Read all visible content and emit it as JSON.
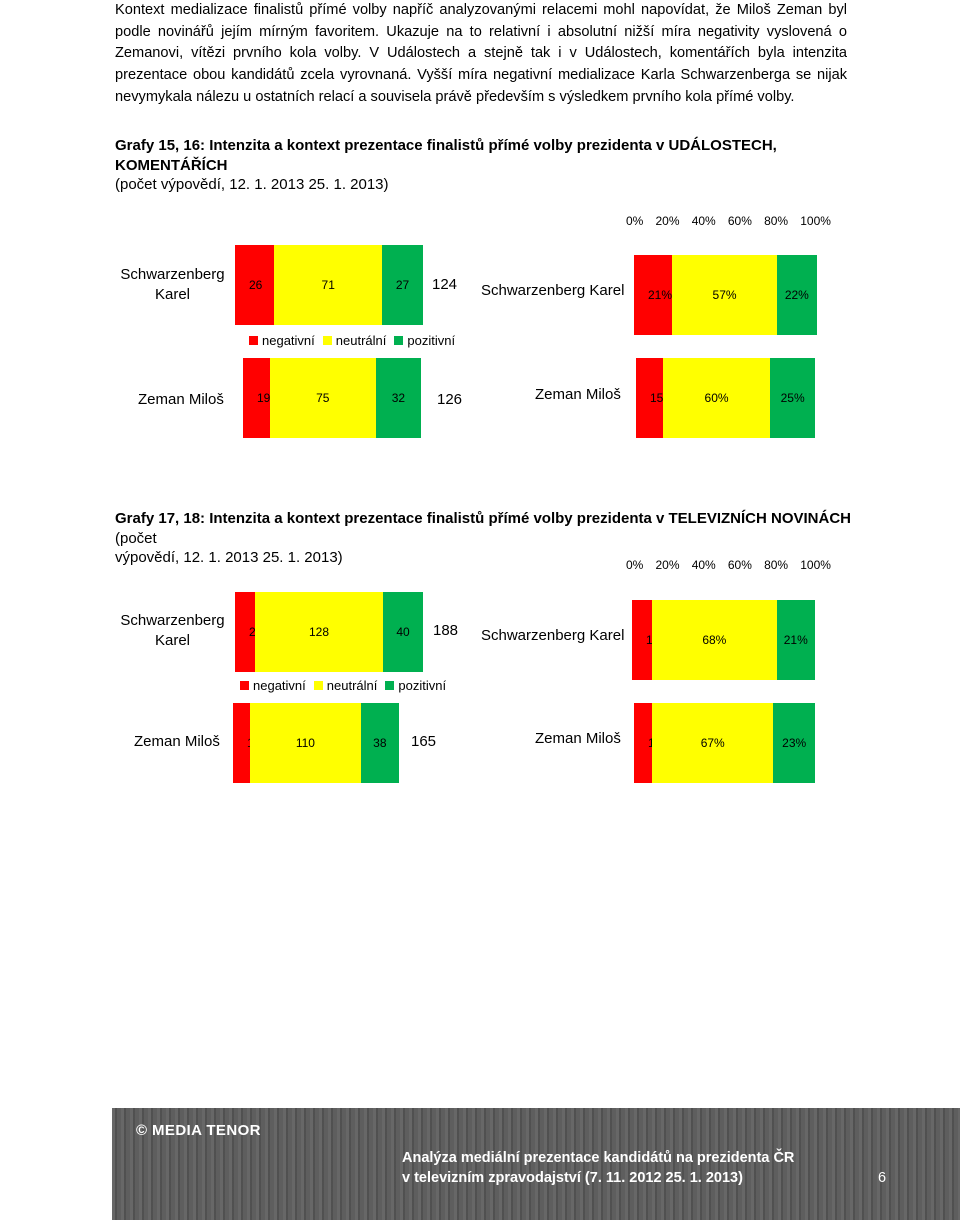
{
  "paragraph": [
    "Kontext medializace finalistů přímé volby napříč analyzovanými relacemi mohl napovídat, že Miloš Zeman byl",
    "podle novinářů jejím mírným favoritem. Ukazuje na to relativní i absolutní nižší míra negativity vyslovená o",
    "Zemanovi, vítězi prvního kola volby. V Událostech a stejně tak i v Událostech, komentářích byla intenzita",
    "prezentace obou kandidátů zcela vyrovnaná. Vyšší míra negativní medializace Karla Schwarzenberga se nijak",
    "nevymykala nálezu u ostatních relací a souvisela právě především s výsledkem prvního kola přímé volby."
  ],
  "section1": {
    "title_bold": "Grafy 15, 16: Intenzita a kontext prezentace finalistů přímé volby prezidenta v UDÁLOSTECH, KOMENTÁŘÍCH",
    "title_rest": "(počet výpovědí, 12. 1. 2013 25. 1. 2013)"
  },
  "section2": {
    "title_bold": "Grafy 17, 18: Intenzita a kontext prezentace finalistů přímé volby prezidenta v TELEVIZNÍCH NOVINÁCH",
    "title_rest_1": "(počet",
    "title_rest_2": "výpovědí, 12. 1. 2013 25. 1. 2013)"
  },
  "axis_ticks": [
    "0%",
    "20%",
    "40%",
    "60%",
    "80%",
    "100%"
  ],
  "legend": [
    "negativní",
    "neutrální",
    "pozitivní"
  ],
  "colors": {
    "negativni": "#ff0000",
    "neutralni": "#ffff00",
    "pozitivni": "#00b050"
  },
  "chart_data": [
    {
      "type": "bar",
      "title": "Grafy 15 (počet výpovědí)",
      "stacked": true,
      "categories": [
        "Schwarzenberg Karel",
        "Zeman Miloš"
      ],
      "series": [
        {
          "name": "negativní",
          "values": [
            26,
            19
          ]
        },
        {
          "name": "neutrální",
          "values": [
            71,
            75
          ]
        },
        {
          "name": "pozitivní",
          "values": [
            27,
            32
          ]
        }
      ],
      "totals": [
        124,
        126
      ]
    },
    {
      "type": "bar",
      "title": "Grafy 16 (%)",
      "stacked": true,
      "categories": [
        "Schwarzenberg Karel",
        "Zeman Miloš"
      ],
      "series": [
        {
          "name": "negativní",
          "values": [
            21,
            15
          ]
        },
        {
          "name": "neutrální",
          "values": [
            57,
            60
          ]
        },
        {
          "name": "pozitivní",
          "values": [
            22,
            25
          ]
        }
      ]
    },
    {
      "type": "bar",
      "title": "Grafy 17 (počet výpovědí)",
      "stacked": true,
      "categories": [
        "Schwarzenberg Karel",
        "Zeman Miloš"
      ],
      "series": [
        {
          "name": "negativní",
          "values": [
            20,
            17
          ]
        },
        {
          "name": "neutrální",
          "values": [
            128,
            110
          ]
        },
        {
          "name": "pozitivní",
          "values": [
            40,
            38
          ]
        }
      ],
      "totals": [
        188,
        165
      ]
    },
    {
      "type": "bar",
      "title": "Grafy 18 (%)",
      "stacked": true,
      "categories": [
        "Schwarzenberg Karel",
        "Zeman Miloš"
      ],
      "series": [
        {
          "name": "negativní",
          "values": [
            11,
            10
          ]
        },
        {
          "name": "neutrální",
          "values": [
            68,
            67
          ]
        },
        {
          "name": "pozitivní",
          "values": [
            21,
            23
          ]
        }
      ]
    }
  ],
  "labels": {
    "schwarz_line1": "Schwarzenberg",
    "schwarz_line2": "Karel",
    "schwarz_full": "Schwarzenberg Karel",
    "zeman": "Zeman Miloš"
  },
  "footer": {
    "brand": "© MEDIA TENOR",
    "line1": "Analýza mediální prezentace kandidátů na prezidenta ČR",
    "line2": "v televizním zpravodajství (7. 11. 2012 25. 1. 2013)",
    "page": "6"
  }
}
